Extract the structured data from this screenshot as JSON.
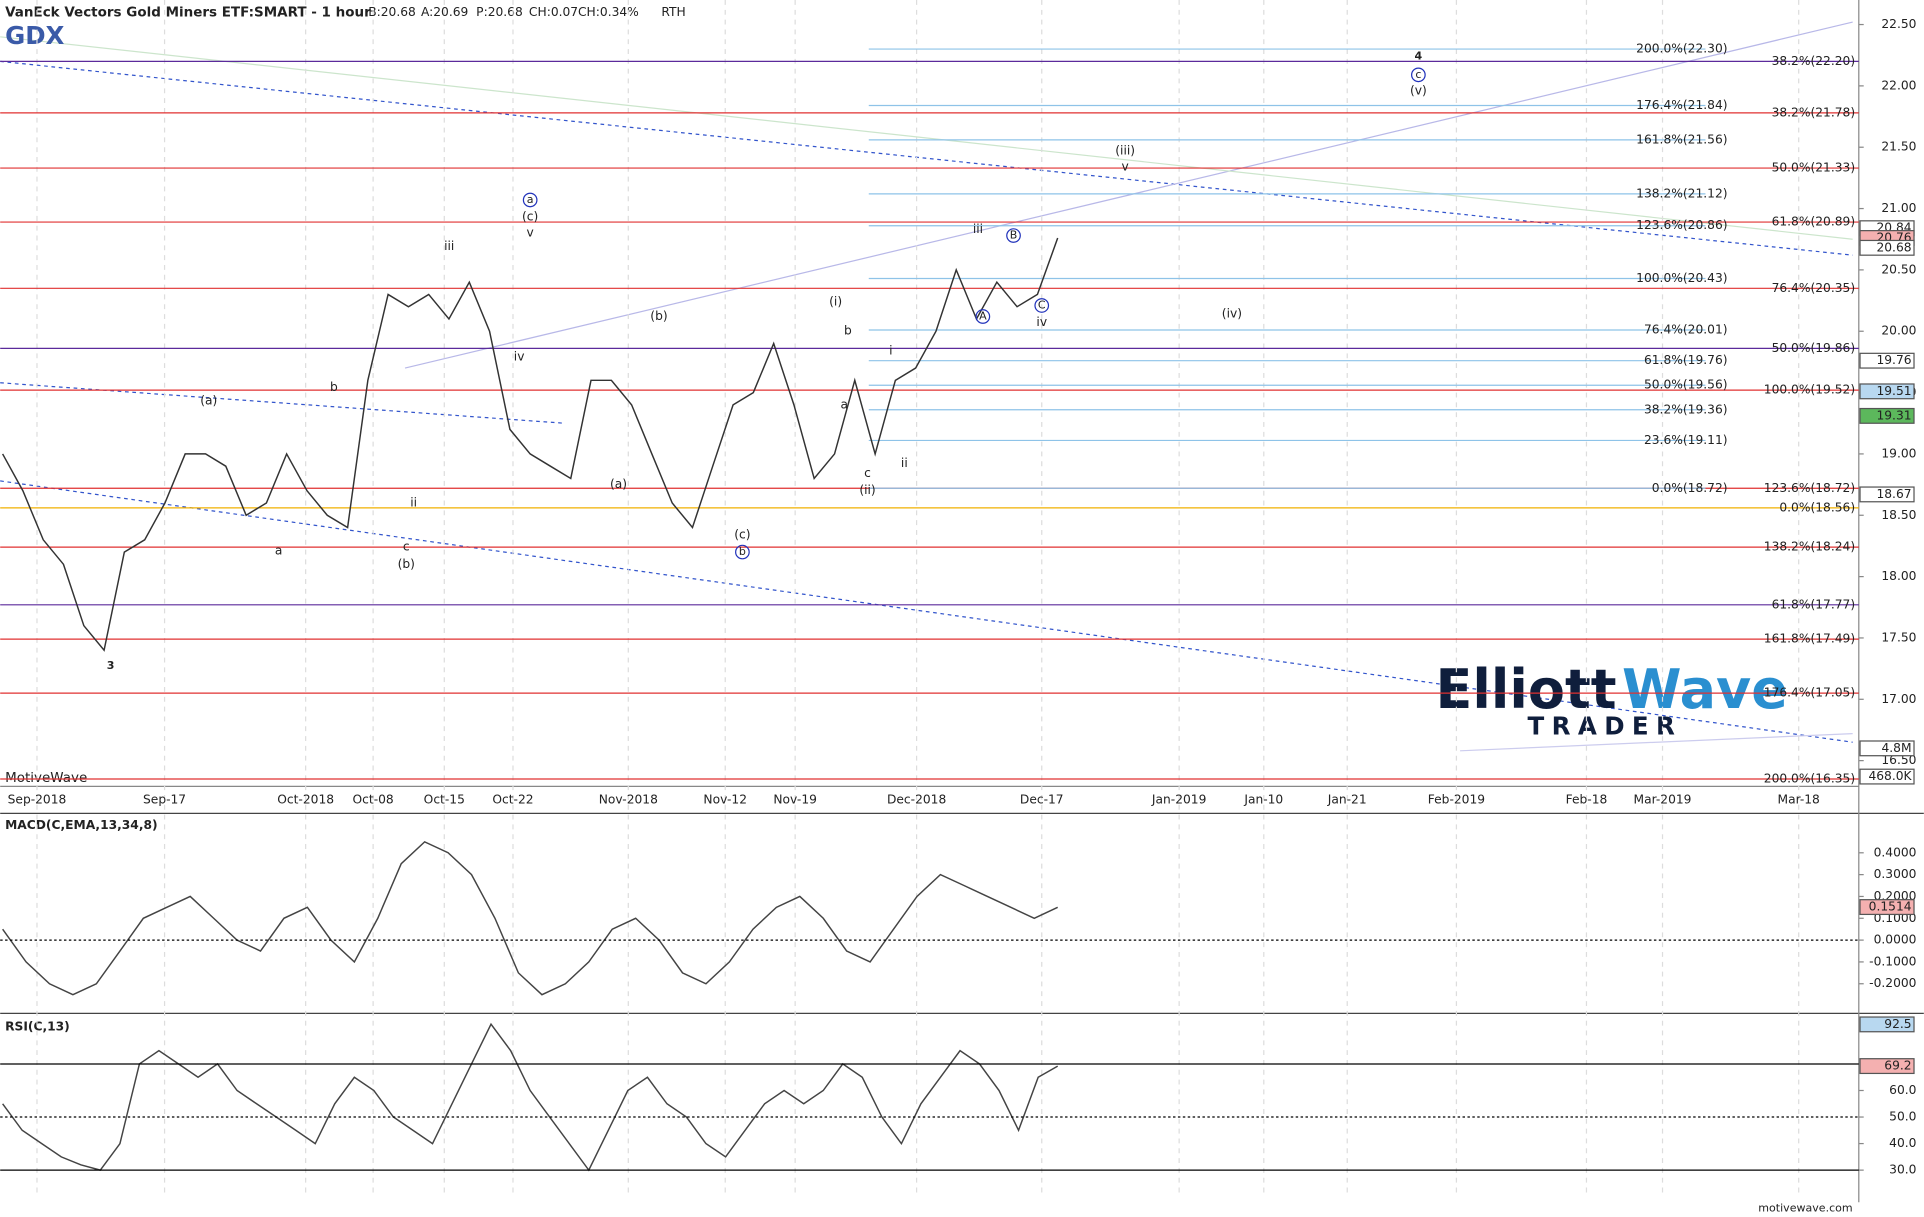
{
  "chart_data": [
    {
      "type": "line",
      "title": "VanEck Vectors Gold Miners ETF:SMART - 1 hour",
      "symbol": "GDX",
      "quote": [
        "B:20.68",
        "A:20.69",
        "P:20.68",
        "CH:0.07",
        "CH:0.34%",
        "RTH"
      ],
      "xticks": [
        "Sep-2018",
        "Sep-17",
        "Oct-2018",
        "Oct-08",
        "Oct-15",
        "Oct-22",
        "Nov-2018",
        "Nov-12",
        "Nov-19",
        "Dec-2018",
        "Dec-17",
        "Jan-2019",
        "Jan-10",
        "Jan-21",
        "Feb-2019",
        "Feb-18",
        "Mar-2019",
        "Mar-18"
      ],
      "ylim": [
        16.3,
        22.7
      ],
      "yticks": [
        {
          "value": 16.5,
          "label": "16.50"
        },
        {
          "value": 17,
          "label": "17.00"
        },
        {
          "value": 17.5,
          "label": "17.50"
        },
        {
          "value": 18,
          "label": "18.00"
        },
        {
          "value": 18.5,
          "label": "18.50"
        },
        {
          "value": 19,
          "label": "19.00"
        },
        {
          "value": 19.5,
          "label": "19.50"
        },
        {
          "value": 20,
          "label": "20.00"
        },
        {
          "value": 20.5,
          "label": "20.50"
        },
        {
          "value": 21,
          "label": "21.00"
        },
        {
          "value": 21.5,
          "label": "21.50"
        },
        {
          "value": 22,
          "label": "22.00"
        },
        {
          "value": 22.5,
          "label": "22.50"
        }
      ],
      "series": [
        {
          "name": "GDX",
          "color": "#333333",
          "values": [
            19.0,
            18.7,
            18.3,
            18.1,
            17.6,
            17.4,
            18.2,
            18.3,
            18.6,
            19.0,
            19.0,
            18.9,
            18.5,
            18.6,
            19.0,
            18.7,
            18.5,
            18.4,
            19.6,
            20.3,
            20.2,
            20.3,
            20.1,
            20.4,
            20.0,
            19.2,
            19.0,
            18.9,
            18.8,
            19.6,
            19.6,
            19.4,
            19.0,
            18.6,
            18.4,
            18.9,
            19.4,
            19.5,
            19.9,
            19.4,
            18.8,
            19.0,
            19.6,
            19.0,
            19.6,
            19.7,
            20.0,
            20.5,
            20.1,
            20.4,
            20.2,
            20.3,
            20.76
          ]
        }
      ],
      "levels": [
        {
          "label": "38.2%(22.20)",
          "value": 22.2,
          "color": "#5b2a9b"
        },
        {
          "label": "38.2%(21.78)",
          "value": 21.78,
          "color": "#e03030"
        },
        {
          "label": "50.0%(21.33)",
          "value": 21.33,
          "color": "#e03030"
        },
        {
          "label": "61.8%(20.89)",
          "value": 20.89,
          "color": "#e03030"
        },
        {
          "label": "76.4%(20.35)",
          "value": 20.35,
          "color": "#e03030"
        },
        {
          "label": "50.0%(19.86)",
          "value": 19.86,
          "color": "#5b2a9b"
        },
        {
          "label": "100.0%(19.52)",
          "value": 19.52,
          "color": "#e03030"
        },
        {
          "label": "123.6%(18.72)",
          "value": 18.72,
          "color": "#e03030"
        },
        {
          "label": "0.0%(18.56)",
          "value": 18.56,
          "color": "#f0b000"
        },
        {
          "label": "138.2%(18.24)",
          "value": 18.24,
          "color": "#e03030"
        },
        {
          "label": "61.8%(17.77)",
          "value": 17.77,
          "color": "#5b2a9b"
        },
        {
          "label": "161.8%(17.49)",
          "value": 17.49,
          "color": "#e03030"
        },
        {
          "label": "176.4%(17.05)",
          "value": 17.05,
          "color": "#e03030"
        },
        {
          "label": "200.0%(16.35)",
          "value": 16.35,
          "color": "#e03030"
        }
      ],
      "blue_levels": [
        {
          "label": "200.0%(22.30)",
          "value": 22.3
        },
        {
          "label": "176.4%(21.84)",
          "value": 21.84
        },
        {
          "label": "161.8%(21.56)",
          "value": 21.56
        },
        {
          "label": "138.2%(21.12)",
          "value": 21.12
        },
        {
          "label": "123.6%(20.86)",
          "value": 20.86
        },
        {
          "label": "100.0%(20.43)",
          "value": 20.43
        },
        {
          "label": "76.4%(20.01)",
          "value": 20.01
        },
        {
          "label": "61.8%(19.76)",
          "value": 19.76
        },
        {
          "label": "50.0%(19.56)",
          "value": 19.56
        },
        {
          "label": "38.2%(19.36)",
          "value": 19.36
        },
        {
          "label": "23.6%(19.11)",
          "value": 19.11
        },
        {
          "label": "0.0%(18.72)",
          "value": 18.72
        }
      ],
      "blue_level_color": "#8ec3e8",
      "price_tags": [
        20.84,
        20.76,
        20.68,
        19.76,
        19.51,
        19.31,
        18.67
      ],
      "price_tag_colors": [
        "#ffffff",
        "#f4b0b0",
        "#ffffff",
        "#ffffff",
        "#b8d8f0",
        "#5cb85c",
        "#ffffff"
      ],
      "volume_tags": [
        "4.8M",
        "468.0K"
      ],
      "wave_labels": [
        "3",
        "(a)",
        "b",
        "a",
        "c",
        "(b)",
        "ii",
        "iii",
        "a",
        "(c)",
        "v",
        "iv",
        "(a)",
        "(b)",
        "(c)",
        "b",
        "(i)",
        "b",
        "a",
        "c",
        "(ii)",
        "i",
        "ii",
        "iii",
        "A",
        "B",
        "C",
        "iv",
        "(iii)",
        "v",
        "(iv)",
        "4",
        "c",
        "(v)"
      ],
      "brand": "MotiveWave",
      "site": "motivewave.com",
      "logo": [
        "Elliott",
        "Wave",
        "TRADER"
      ]
    },
    {
      "type": "line",
      "title": "MACD(C,EMA,13,34,8)",
      "ylim": [
        -0.33,
        0.575
      ],
      "yticks": [
        {
          "value": 0.4,
          "label": "0.4000"
        },
        {
          "value": 0.3,
          "label": "0.3000"
        },
        {
          "value": 0.2,
          "label": "0.2000"
        },
        {
          "value": 0.1,
          "label": "0.1000"
        },
        {
          "value": 0,
          "label": "0.0000"
        },
        {
          "value": -0.1,
          "label": "-0.1000"
        },
        {
          "value": -0.2,
          "label": "-0.2000"
        }
      ],
      "series": [
        {
          "name": "MACD",
          "color": "#444444",
          "values": [
            0.05,
            -0.1,
            -0.2,
            -0.25,
            -0.2,
            -0.05,
            0.1,
            0.15,
            0.2,
            0.1,
            0.0,
            -0.05,
            0.1,
            0.15,
            0.0,
            -0.1,
            0.1,
            0.35,
            0.45,
            0.4,
            0.3,
            0.1,
            -0.15,
            -0.25,
            -0.2,
            -0.1,
            0.05,
            0.1,
            0.0,
            -0.15,
            -0.2,
            -0.1,
            0.05,
            0.15,
            0.2,
            0.1,
            -0.05,
            -0.1,
            0.05,
            0.2,
            0.3,
            0.25,
            0.2,
            0.15,
            0.1,
            0.15
          ]
        }
      ],
      "tag": 0.1514
    },
    {
      "type": "line",
      "title": "RSI(C,13)",
      "ylim": [
        20.2,
        88.6
      ],
      "yticks": [
        {
          "value": 30,
          "label": "30.0"
        },
        {
          "value": 40,
          "label": "40.0"
        },
        {
          "value": 50,
          "label": "50.0"
        },
        {
          "value": 60,
          "label": "60.0"
        }
      ],
      "levels": [
        30,
        50,
        70
      ],
      "series": [
        {
          "name": "RSI",
          "color": "#444444",
          "values": [
            55,
            45,
            40,
            35,
            32,
            30,
            40,
            70,
            75,
            70,
            65,
            70,
            60,
            55,
            50,
            45,
            40,
            55,
            65,
            60,
            50,
            45,
            40,
            55,
            70,
            85,
            75,
            60,
            50,
            40,
            30,
            45,
            60,
            65,
            55,
            50,
            40,
            35,
            45,
            55,
            60,
            55,
            60,
            70,
            65,
            50,
            40,
            55,
            65,
            75,
            70,
            60,
            45,
            65,
            69.2
          ]
        }
      ],
      "tags": [
        92.5,
        69.2
      ]
    }
  ]
}
